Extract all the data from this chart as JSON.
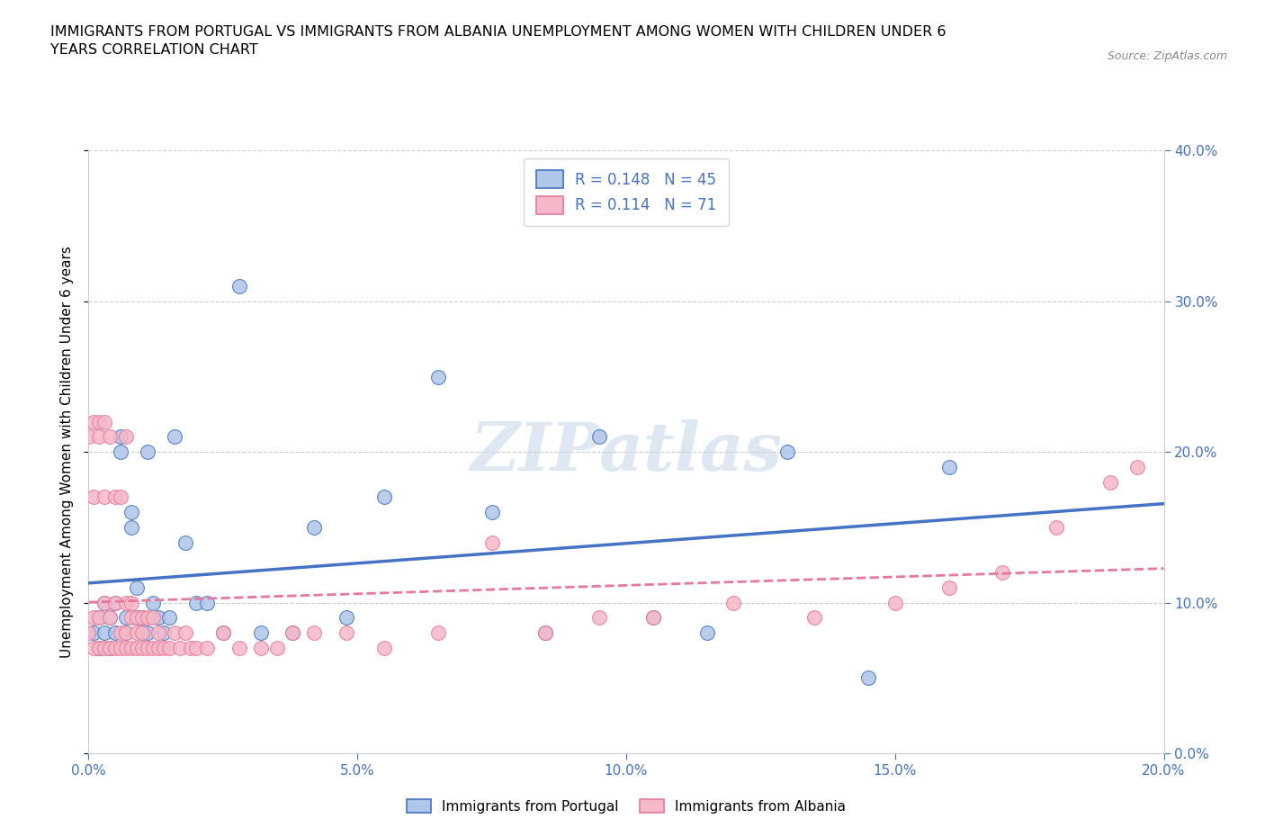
{
  "title": "IMMIGRANTS FROM PORTUGAL VS IMMIGRANTS FROM ALBANIA UNEMPLOYMENT AMONG WOMEN WITH CHILDREN UNDER 6\nYEARS CORRELATION CHART",
  "source": "Source: ZipAtlas.com",
  "ylabel_label": "Unemployment Among Women with Children Under 6 years",
  "xlim": [
    0.0,
    0.2
  ],
  "ylim": [
    0.0,
    0.4
  ],
  "legend_label1": "Immigrants from Portugal",
  "legend_label2": "Immigrants from Albania",
  "r1": 0.148,
  "n1": 45,
  "r2": 0.114,
  "n2": 71,
  "color1": "#aec6e8",
  "color2": "#f5b8c8",
  "edge_color1": "#4472c4",
  "edge_color2": "#e8789a",
  "line_color1": "#4472c4",
  "line_color2": "#e8789a",
  "watermark": "ZIPatlas",
  "portugal_x": [
    0.001,
    0.002,
    0.002,
    0.003,
    0.003,
    0.004,
    0.004,
    0.005,
    0.005,
    0.006,
    0.006,
    0.007,
    0.007,
    0.008,
    0.008,
    0.009,
    0.009,
    0.01,
    0.01,
    0.011,
    0.011,
    0.012,
    0.013,
    0.014,
    0.015,
    0.016,
    0.018,
    0.02,
    0.022,
    0.025,
    0.028,
    0.032,
    0.038,
    0.042,
    0.048,
    0.055,
    0.065,
    0.075,
    0.085,
    0.095,
    0.105,
    0.115,
    0.13,
    0.145,
    0.16
  ],
  "portugal_y": [
    0.08,
    0.07,
    0.09,
    0.08,
    0.1,
    0.07,
    0.09,
    0.1,
    0.08,
    0.2,
    0.21,
    0.08,
    0.09,
    0.15,
    0.16,
    0.09,
    0.11,
    0.09,
    0.08,
    0.08,
    0.2,
    0.1,
    0.09,
    0.08,
    0.09,
    0.21,
    0.14,
    0.1,
    0.1,
    0.08,
    0.31,
    0.08,
    0.08,
    0.15,
    0.09,
    0.17,
    0.25,
    0.16,
    0.08,
    0.21,
    0.09,
    0.08,
    0.2,
    0.05,
    0.19
  ],
  "albania_x": [
    0.0,
    0.0,
    0.001,
    0.001,
    0.001,
    0.001,
    0.002,
    0.002,
    0.002,
    0.002,
    0.003,
    0.003,
    0.003,
    0.003,
    0.004,
    0.004,
    0.004,
    0.005,
    0.005,
    0.005,
    0.006,
    0.006,
    0.006,
    0.007,
    0.007,
    0.007,
    0.007,
    0.008,
    0.008,
    0.008,
    0.009,
    0.009,
    0.009,
    0.01,
    0.01,
    0.01,
    0.011,
    0.011,
    0.012,
    0.012,
    0.013,
    0.013,
    0.014,
    0.015,
    0.016,
    0.017,
    0.018,
    0.019,
    0.02,
    0.022,
    0.025,
    0.028,
    0.032,
    0.035,
    0.038,
    0.042,
    0.048,
    0.055,
    0.065,
    0.075,
    0.085,
    0.095,
    0.105,
    0.12,
    0.135,
    0.15,
    0.16,
    0.17,
    0.18,
    0.19,
    0.195
  ],
  "albania_y": [
    0.08,
    0.21,
    0.07,
    0.09,
    0.17,
    0.22,
    0.07,
    0.09,
    0.21,
    0.22,
    0.07,
    0.1,
    0.17,
    0.22,
    0.07,
    0.09,
    0.21,
    0.07,
    0.1,
    0.17,
    0.07,
    0.08,
    0.17,
    0.07,
    0.08,
    0.1,
    0.21,
    0.07,
    0.09,
    0.1,
    0.07,
    0.08,
    0.09,
    0.07,
    0.08,
    0.09,
    0.07,
    0.09,
    0.07,
    0.09,
    0.07,
    0.08,
    0.07,
    0.07,
    0.08,
    0.07,
    0.08,
    0.07,
    0.07,
    0.07,
    0.08,
    0.07,
    0.07,
    0.07,
    0.08,
    0.08,
    0.08,
    0.07,
    0.08,
    0.14,
    0.08,
    0.09,
    0.09,
    0.1,
    0.09,
    0.1,
    0.11,
    0.12,
    0.15,
    0.18,
    0.19
  ]
}
